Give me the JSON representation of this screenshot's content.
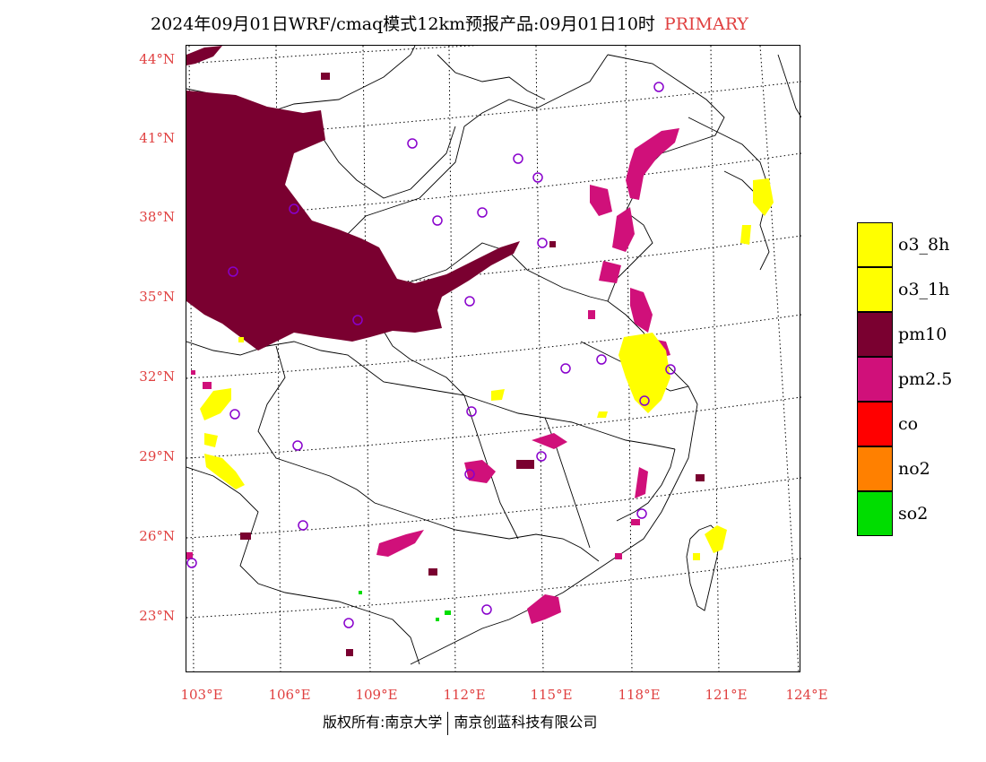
{
  "title": "2024年09月01日WRF/cmaq模式12km预报产品:09月01日10时",
  "title_tag": "PRIMARY",
  "lat_labels": [
    "44°N",
    "41°N",
    "38°N",
    "35°N",
    "32°N",
    "29°N",
    "26°N",
    "23°N"
  ],
  "lon_labels": [
    "103°E",
    "106°E",
    "109°E",
    "112°E",
    "115°E",
    "118°E",
    "121°E",
    "124°E"
  ],
  "legend": [
    {
      "label": "o3_8h",
      "color": "#ffff00"
    },
    {
      "label": "o3_1h",
      "color": "#ffff00"
    },
    {
      "label": "pm10",
      "color": "#7a0030"
    },
    {
      "label": "pm2.5",
      "color": "#d0107a"
    },
    {
      "label": "co",
      "color": "#ff0000"
    },
    {
      "label": "no2",
      "color": "#ff8000"
    },
    {
      "label": "so2",
      "color": "#00dd00"
    }
  ],
  "copyright_left": "版权所有:南京大学",
  "copyright_right": "南京创蓝科技有限公司",
  "colors": {
    "label_red": "#e04040",
    "station_marker": "#8800cc"
  }
}
